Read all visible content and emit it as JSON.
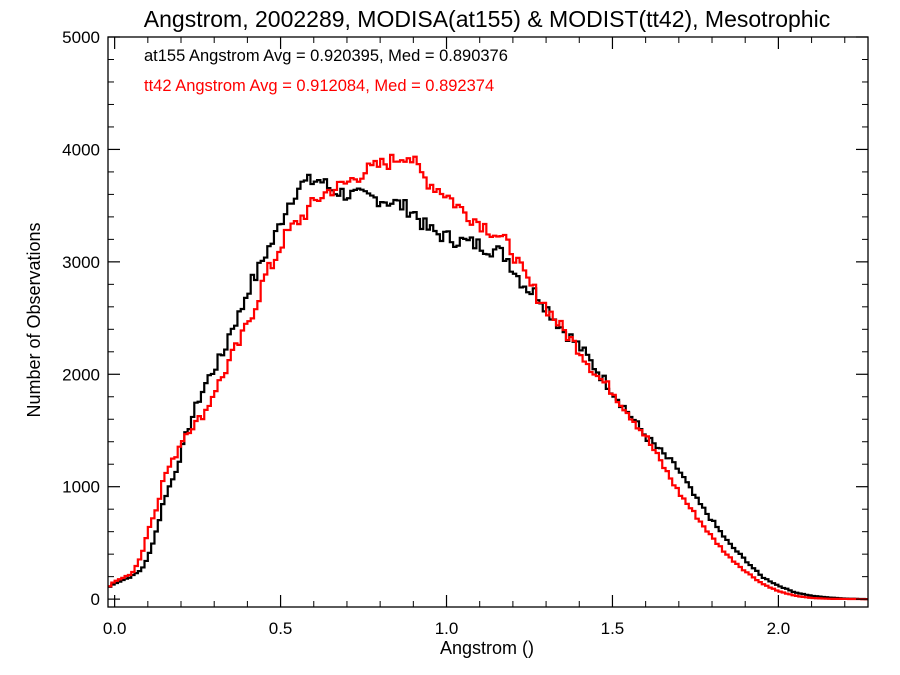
{
  "chart_data": {
    "type": "line",
    "title": "Angstrom, 2002289, MODISA(at155) & MODIST(tt42), Mesotrophic",
    "xlabel": "Angstrom ()",
    "ylabel": "Number of Observations",
    "xlim": [
      -0.02,
      2.27
    ],
    "ylim": [
      -70,
      5000
    ],
    "x_ticks": [
      {
        "value": 0.0,
        "label": "0.0"
      },
      {
        "value": 0.5,
        "label": "0.5"
      },
      {
        "value": 1.0,
        "label": "1.0"
      },
      {
        "value": 1.5,
        "label": "1.5"
      },
      {
        "value": 2.0,
        "label": "2.0"
      }
    ],
    "y_ticks": [
      {
        "value": 0,
        "label": "0"
      },
      {
        "value": 1000,
        "label": "1000"
      },
      {
        "value": 2000,
        "label": "2000"
      },
      {
        "value": 3000,
        "label": "3000"
      },
      {
        "value": 4000,
        "label": "4000"
      },
      {
        "value": 5000,
        "label": "5000"
      }
    ],
    "grid": false,
    "histogram_bin_width": 0.01,
    "annotations": [
      {
        "text": "at155 Angstrom Avg = 0.920395, Med = 0.890376",
        "color": "#000000"
      },
      {
        "text": "tt42 Angstrom Avg = 0.912084, Med = 0.892374",
        "color": "#ff0000"
      }
    ],
    "series": [
      {
        "color": "#000000",
        "style": "step",
        "x": [
          -0.02,
          0.0,
          0.05,
          0.08,
          0.1,
          0.13,
          0.15,
          0.18,
          0.2,
          0.22,
          0.25,
          0.28,
          0.3,
          0.33,
          0.35,
          0.38,
          0.4,
          0.43,
          0.45,
          0.48,
          0.5,
          0.52,
          0.55,
          0.57,
          0.6,
          0.62,
          0.63,
          0.65,
          0.68,
          0.7,
          0.75,
          0.8,
          0.85,
          0.9,
          0.93,
          0.95,
          1.0,
          1.05,
          1.1,
          1.15,
          1.18,
          1.2,
          1.22,
          1.25,
          1.28,
          1.3,
          1.35,
          1.4,
          1.45,
          1.5,
          1.55,
          1.6,
          1.65,
          1.7,
          1.75,
          1.8,
          1.85,
          1.9,
          1.95,
          2.0,
          2.05,
          2.1,
          2.15,
          2.2,
          2.27
        ],
        "values": [
          100,
          140,
          200,
          260,
          360,
          650,
          900,
          1100,
          1300,
          1500,
          1750,
          1950,
          2050,
          2200,
          2400,
          2550,
          2750,
          2900,
          3050,
          3200,
          3350,
          3500,
          3650,
          3700,
          3720,
          3730,
          3700,
          3650,
          3620,
          3600,
          3580,
          3560,
          3520,
          3450,
          3330,
          3280,
          3220,
          3180,
          3150,
          3100,
          3050,
          2950,
          2850,
          2750,
          2700,
          2600,
          2400,
          2250,
          2050,
          1850,
          1650,
          1450,
          1300,
          1150,
          900,
          700,
          500,
          350,
          200,
          120,
          60,
          30,
          15,
          5,
          0
        ]
      },
      {
        "color": "#ff0000",
        "style": "step",
        "x": [
          -0.02,
          0.0,
          0.05,
          0.08,
          0.1,
          0.13,
          0.15,
          0.18,
          0.2,
          0.22,
          0.25,
          0.28,
          0.3,
          0.33,
          0.35,
          0.38,
          0.4,
          0.43,
          0.45,
          0.48,
          0.5,
          0.52,
          0.55,
          0.58,
          0.6,
          0.62,
          0.65,
          0.68,
          0.7,
          0.73,
          0.75,
          0.78,
          0.8,
          0.83,
          0.85,
          0.88,
          0.9,
          0.93,
          0.95,
          1.0,
          1.05,
          1.1,
          1.15,
          1.2,
          1.22,
          1.25,
          1.3,
          1.35,
          1.4,
          1.45,
          1.5,
          1.55,
          1.6,
          1.65,
          1.7,
          1.75,
          1.8,
          1.85,
          1.9,
          1.95,
          2.0,
          2.05,
          2.1,
          2.15,
          2.27
        ],
        "values": [
          100,
          160,
          220,
          380,
          600,
          850,
          1100,
          1250,
          1400,
          1500,
          1580,
          1700,
          1850,
          2000,
          2150,
          2300,
          2450,
          2650,
          2850,
          3000,
          3150,
          3250,
          3350,
          3450,
          3520,
          3580,
          3640,
          3670,
          3700,
          3760,
          3800,
          3830,
          3860,
          3890,
          3920,
          3960,
          3890,
          3760,
          3700,
          3600,
          3450,
          3350,
          3250,
          3100,
          2950,
          2800,
          2600,
          2400,
          2220,
          2000,
          1850,
          1650,
          1450,
          1200,
          950,
          750,
          550,
          380,
          250,
          140,
          70,
          30,
          10,
          3,
          0
        ]
      }
    ]
  }
}
